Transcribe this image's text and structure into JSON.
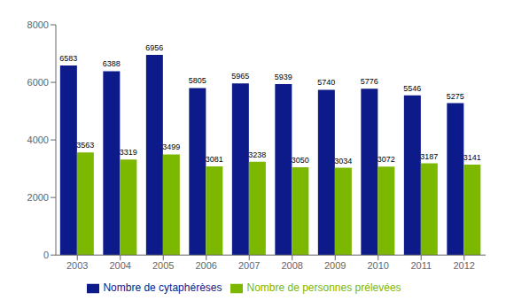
{
  "chart_data": {
    "type": "bar",
    "categories": [
      "2003",
      "2004",
      "2005",
      "2006",
      "2007",
      "2008",
      "2009",
      "2010",
      "2011",
      "2012"
    ],
    "series": [
      {
        "name": "Nombre de cytaphérèses",
        "color": "#0C1A8A",
        "values": [
          6583,
          6388,
          6956,
          5805,
          5965,
          5939,
          5740,
          5776,
          5546,
          5275
        ]
      },
      {
        "name": "Nombre de personnes prélevées",
        "color": "#7DB800",
        "values": [
          3563,
          3319,
          3499,
          3081,
          3238,
          3050,
          3034,
          3072,
          3187,
          3141
        ]
      }
    ],
    "ylim": [
      0,
      8000
    ],
    "yticks": [
      0,
      2000,
      4000,
      6000,
      8000
    ],
    "grid": false,
    "legend": "bottom",
    "data_labels": true
  }
}
